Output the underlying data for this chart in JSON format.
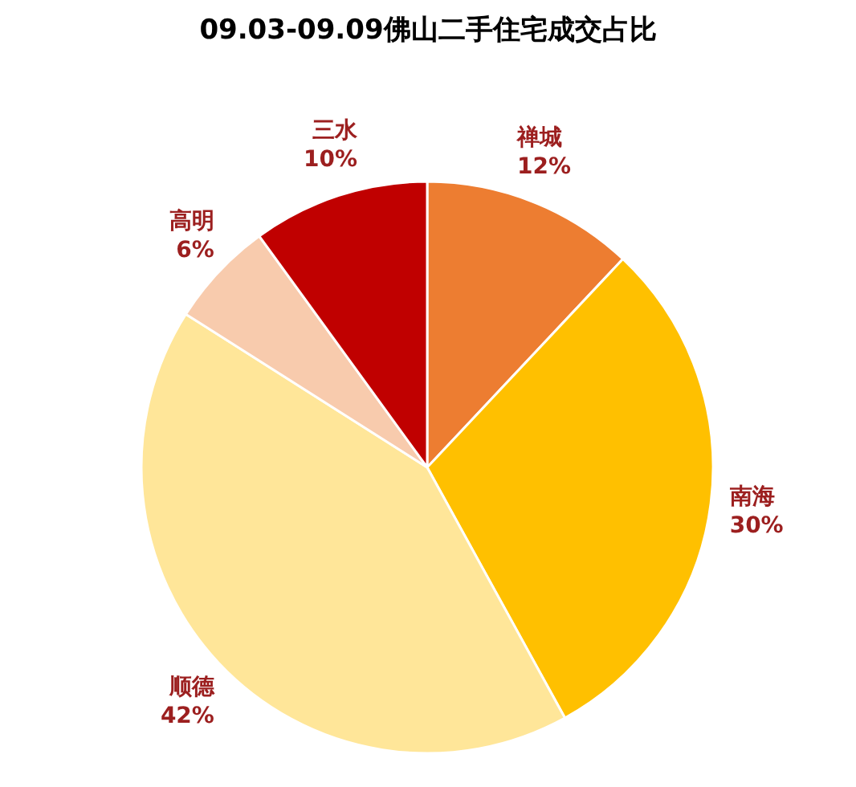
{
  "chart_data": {
    "type": "pie",
    "title": "09.03-09.09佛山二手住宅成交占比",
    "categories": [
      "禅城",
      "南海",
      "顺德",
      "高明",
      "三水"
    ],
    "values": [
      12,
      30,
      42,
      6,
      10
    ],
    "value_labels": [
      "12%",
      "30%",
      "42%",
      "6%",
      "10%"
    ],
    "colors": [
      "#ed7d31",
      "#ffc000",
      "#ffe699",
      "#f8cbad",
      "#c00000"
    ]
  }
}
